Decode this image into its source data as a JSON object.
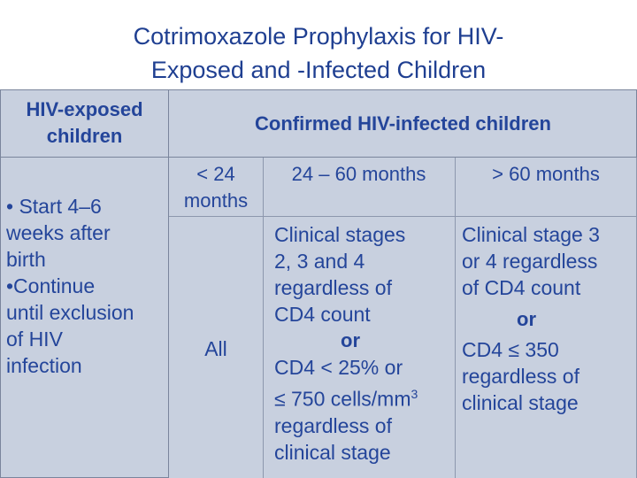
{
  "title": {
    "line1": "Cotrimoxazole Prophylaxis for HIV-",
    "line2": "Exposed and -Infected Children"
  },
  "table": {
    "header_left": {
      "line1": "HIV-exposed",
      "line2": "children"
    },
    "header_right": "Confirmed HIV-infected children",
    "subheaders": {
      "col1_line1": "< 24",
      "col1_line2": "months",
      "col2": "24 – 60 months",
      "col3": "> 60 months"
    },
    "exposed_text": {
      "l1": "• Start 4–6",
      "l2": "weeks after",
      "l3": "birth",
      "l4": "•Continue",
      "l5": "until exclusion",
      "l6": "of HIV",
      "l7": "infection"
    },
    "col1_value": "All",
    "col2": {
      "l1": "Clinical stages",
      "l2": "2, 3 and 4",
      "l3": "regardless of",
      "l4": "CD4 count",
      "or": "or",
      "l5": "CD4 < 25% or",
      "l6": "≤ 750 cells/mm",
      "l6_sup": "3",
      "l7": "regardless of",
      "l8": "clinical stage"
    },
    "col3": {
      "l1": "Clinical stage 3",
      "l2": "or 4 regardless",
      "l3": "of CD4 count",
      "or": "or",
      "l4": "CD4 ≤ 350",
      "l5": "regardless of",
      "l6": "clinical stage"
    }
  }
}
